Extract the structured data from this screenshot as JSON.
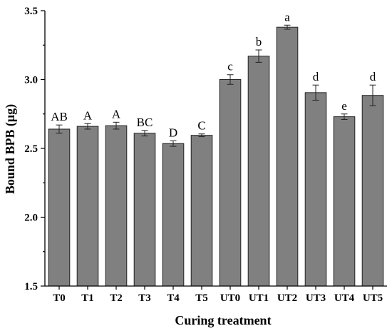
{
  "chart_data": {
    "type": "bar",
    "categories": [
      "T0",
      "T1",
      "T2",
      "T3",
      "T4",
      "T5",
      "UT0",
      "UT1",
      "UT2",
      "UT3",
      "UT4",
      "UT5"
    ],
    "values": [
      2.64,
      2.66,
      2.665,
      2.61,
      2.535,
      2.595,
      3.0,
      3.17,
      3.38,
      2.905,
      2.73,
      2.885
    ],
    "errors": [
      0.03,
      0.02,
      0.025,
      0.02,
      0.02,
      0.01,
      0.035,
      0.045,
      0.015,
      0.055,
      0.02,
      0.075
    ],
    "significance_labels": [
      "AB",
      "A",
      "A",
      "BC",
      "D",
      "C",
      "c",
      "b",
      "a",
      "d",
      "e",
      "d"
    ],
    "xlabel": "Curing treatment",
    "ylabel": "Bound BPB (μg)",
    "ylim": [
      1.5,
      3.5
    ],
    "yticks": [
      "1.5",
      "2.0",
      "2.5",
      "3.0",
      "3.5"
    ],
    "grid": false,
    "colors": {
      "bar": "#808080",
      "outline": "#222222"
    }
  }
}
